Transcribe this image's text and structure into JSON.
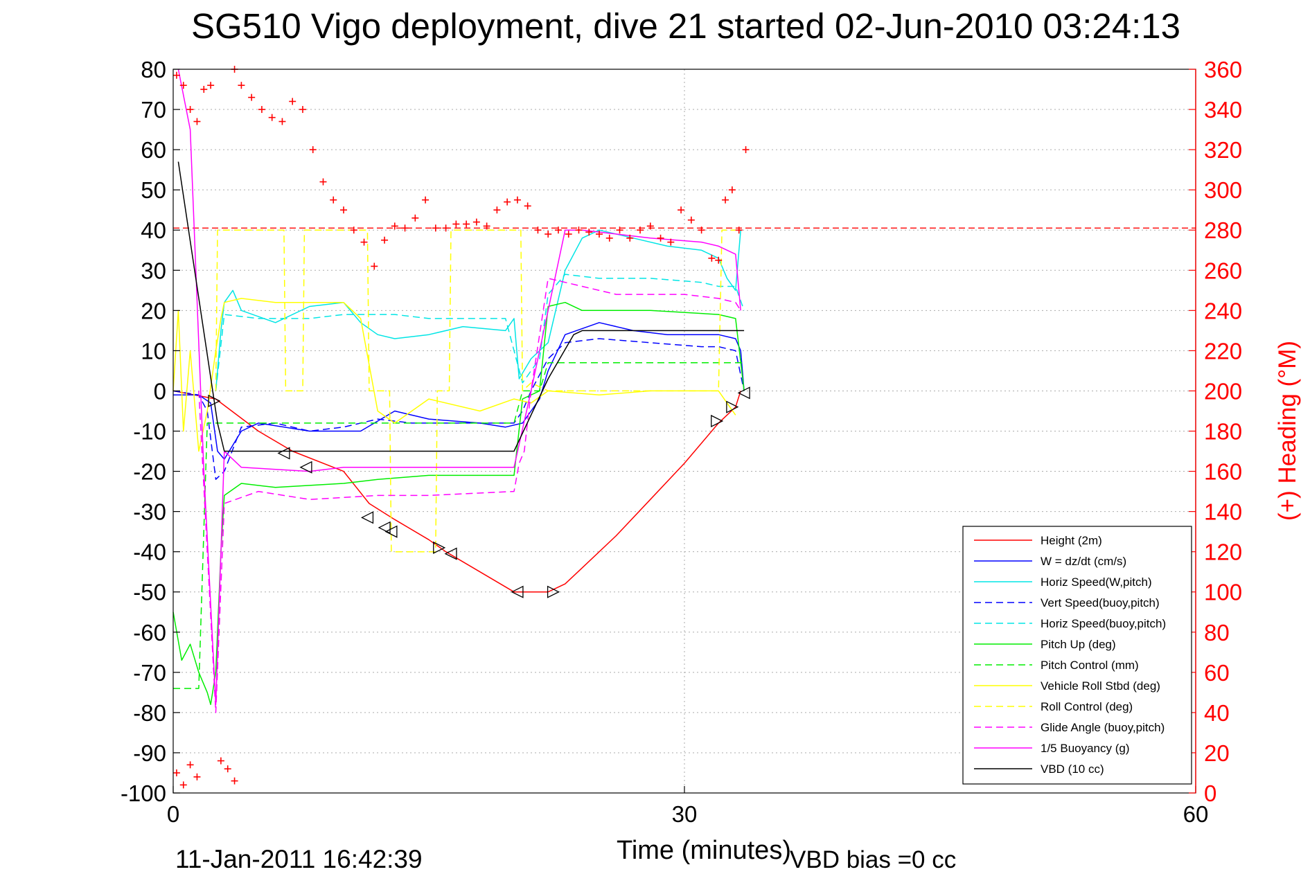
{
  "chart_data": {
    "type": "line",
    "title": "SG510 Vigo deployment, dive 21 started 02-Jun-2010 03:24:13",
    "xlabel": "Time (minutes)",
    "ylabel": "",
    "y2label": "(+) Heading (°M)",
    "xlim": [
      0,
      60
    ],
    "ylim": [
      -100,
      80
    ],
    "y2lim": [
      0,
      360
    ],
    "x_ticks": [
      "0",
      "30",
      "60"
    ],
    "y_ticks": [
      "80",
      "70",
      "60",
      "50",
      "40",
      "30",
      "20",
      "10",
      "0",
      "-10",
      "-20",
      "-30",
      "-40",
      "-50",
      "-60",
      "-70",
      "-80",
      "-90",
      "-100"
    ],
    "y2_ticks": [
      "360",
      "340",
      "320",
      "300",
      "280",
      "260",
      "240",
      "220",
      "200",
      "180",
      "160",
      "140",
      "120",
      "100",
      "80",
      "60",
      "40",
      "20",
      "0"
    ],
    "grid": true,
    "legend_position": "lower-right",
    "bottom_left_text": "11-Jan-2011 16:42:39",
    "bottom_right_text": "VBD bias =0 cc",
    "colors": {
      "red": "#ff0000",
      "blue": "#0000ff",
      "cyan": "#00e5e5",
      "green": "#00ee00",
      "yellow": "#ffff00",
      "magenta": "#ff00ff",
      "black": "#000000",
      "grid": "#aaaaaa"
    },
    "heading_reference": 281,
    "series": [
      {
        "name": "Height (2m)",
        "color": "#ff0000",
        "dash": "solid",
        "x": [
          0,
          2.5,
          5,
          7,
          10,
          11.5,
          13,
          15,
          16,
          20,
          22,
          23,
          24,
          26,
          28,
          30,
          32,
          33,
          33.3
        ],
        "y": [
          0,
          -2,
          -10,
          -15,
          -20,
          -28,
          -32,
          -37,
          -40,
          -50,
          -50,
          -48,
          -44,
          -36,
          -27,
          -18,
          -8,
          -4,
          0
        ]
      },
      {
        "name": "W = dz/dt (cm/s)",
        "color": "#0000ff",
        "dash": "solid",
        "x": [
          0,
          1.5,
          2.2,
          2.6,
          3,
          4,
          5,
          8,
          11,
          13,
          15,
          18,
          19.5,
          20.5,
          21.5,
          22,
          23,
          25,
          27,
          29,
          31,
          32,
          33,
          33.3,
          33.5
        ],
        "y": [
          -1,
          -1,
          -3,
          -15,
          -17,
          -10,
          -8,
          -10,
          -10,
          -5,
          -7,
          -8,
          -9,
          -8,
          -2,
          5,
          14,
          17,
          15,
          14,
          14,
          14,
          13,
          10,
          0
        ]
      },
      {
        "name": "Horiz Speed(W,pitch)",
        "color": "#00e5e5",
        "dash": "solid",
        "x": [
          2.5,
          2.8,
          3,
          3.5,
          4,
          6,
          8,
          10,
          11,
          12,
          13,
          15,
          17,
          19.5,
          20,
          20.3,
          21,
          22,
          23,
          24,
          25,
          27,
          29,
          31,
          32,
          32.5,
          33,
          33.3
        ],
        "y": [
          0,
          15,
          22,
          25,
          20,
          17,
          21,
          22,
          17,
          14,
          13,
          14,
          16,
          15,
          18,
          3,
          8,
          12,
          30,
          38,
          40,
          38,
          36,
          35,
          33,
          28,
          25,
          40
        ]
      },
      {
        "name": "Vert Speed(buoy,pitch)",
        "color": "#0000ff",
        "dash": "dashed",
        "x": [
          0,
          1.5,
          2,
          2.5,
          3,
          4,
          6,
          8,
          10,
          12,
          14,
          16,
          18,
          20,
          20.5,
          21,
          22,
          23,
          25,
          28,
          31,
          32,
          33,
          33.5
        ],
        "y": [
          0,
          -1,
          -5,
          -22,
          -20,
          -9,
          -8,
          -10,
          -9,
          -7,
          -8,
          -8,
          -8,
          -8,
          -5,
          0,
          8,
          12,
          13,
          12,
          11,
          11,
          10,
          0
        ]
      },
      {
        "name": "Horiz Speed(buoy,pitch)",
        "color": "#00e5e5",
        "dash": "dashed",
        "x": [
          2.5,
          3,
          5,
          8,
          10,
          11,
          13,
          15,
          17,
          19.5,
          20.5,
          21.5,
          22,
          23,
          25,
          28,
          31,
          32,
          33,
          33.5
        ],
        "y": [
          0,
          19,
          18,
          18,
          19,
          19,
          19,
          18,
          18,
          18,
          2,
          8,
          24,
          29,
          28,
          28,
          27,
          26,
          26,
          20
        ]
      },
      {
        "name": "Pitch Up (deg)",
        "color": "#00ee00",
        "dash": "solid",
        "x": [
          0,
          0.5,
          1,
          1.5,
          2,
          2.2,
          2.5,
          2.8,
          3,
          4,
          6,
          10,
          12,
          15,
          18,
          20,
          20.5,
          21.5,
          22,
          23,
          24,
          28,
          32,
          33,
          33.5
        ],
        "y": [
          -55,
          -67,
          -63,
          -70,
          -75,
          -78,
          -70,
          -40,
          -26,
          -23,
          -24,
          -23,
          -22,
          -21,
          -21,
          -21,
          -2,
          0,
          21,
          22,
          20,
          20,
          19,
          18,
          0
        ]
      },
      {
        "name": "Pitch Control (mm)",
        "color": "#00ee00",
        "dash": "dashed",
        "x": [
          0,
          1.5,
          2,
          2.5,
          3,
          10,
          20,
          20.5,
          21.5,
          22,
          33.5
        ],
        "y": [
          -74,
          -74,
          -8,
          -8,
          -8,
          -8,
          -8,
          0,
          0,
          7,
          7
        ]
      },
      {
        "name": "Vehicle Roll Stbd (deg)",
        "color": "#ffff00",
        "dash": "solid",
        "x": [
          0,
          0.3,
          0.6,
          1,
          1.5,
          2,
          2.5,
          2.8,
          3,
          4,
          6,
          10,
          11,
          12,
          13,
          15,
          18,
          20,
          21,
          22,
          25,
          28,
          30,
          32,
          32.5,
          33
        ],
        "y": [
          0,
          20,
          -10,
          10,
          -15,
          -5,
          10,
          18,
          22,
          23,
          22,
          22,
          18,
          -5,
          -8,
          -2,
          -5,
          -2,
          -3,
          0,
          -1,
          0,
          0,
          0,
          -3,
          -6
        ]
      },
      {
        "name": "Roll Control (deg)",
        "color": "#ffff00",
        "dash": "dashed",
        "x": [
          2.5,
          2.6,
          6.5,
          6.6,
          7.6,
          7.7,
          11.4,
          11.5,
          12.7,
          12.8,
          15.4,
          15.5,
          16.2,
          16.3,
          20.4,
          20.5,
          21,
          22,
          32,
          32.2,
          33
        ],
        "y": [
          0,
          40,
          40,
          0,
          0,
          40,
          40,
          0,
          0,
          -40,
          -40,
          0,
          0,
          40,
          40,
          0,
          2,
          0,
          0,
          40,
          40
        ]
      },
      {
        "name": "Glide Angle (buoy,pitch)",
        "color": "#ff00ff",
        "dash": "dashed",
        "x": [
          1.5,
          2,
          2.5,
          3,
          5,
          8,
          12,
          15,
          20,
          20.3,
          20.6,
          21,
          22,
          23,
          26,
          30,
          32,
          33,
          33.3
        ],
        "y": [
          0,
          -40,
          -80,
          -28,
          -25,
          -27,
          -26,
          -26,
          -25,
          -18,
          -15,
          0,
          28,
          27,
          24,
          24,
          23,
          22,
          20
        ]
      },
      {
        "name": "1/5 Buoyancy (g)",
        "color": "#ff00ff",
        "dash": "solid",
        "x": [
          0.3,
          1,
          1.8,
          2.5,
          3,
          4,
          8,
          10,
          12,
          15,
          20,
          21,
          22,
          23,
          24,
          28,
          31,
          32,
          33,
          33.3
        ],
        "y": [
          80,
          65,
          -20,
          -78,
          -15,
          -19,
          -20,
          -19,
          -19,
          -19,
          -19,
          0,
          20,
          40,
          40,
          38,
          37,
          36,
          34,
          20
        ]
      },
      {
        "name": "VBD (10 cc)",
        "color": "#000000",
        "dash": "solid",
        "x": [
          0.3,
          2.6,
          3,
          20,
          22,
          23.5,
          24,
          28,
          33.5
        ],
        "y": [
          57,
          -8,
          -15,
          -15,
          3,
          14,
          15,
          15,
          15
        ]
      }
    ],
    "heading_series": {
      "name": "(+) Heading",
      "color": "#ff0000",
      "axis": "right",
      "x": [
        0.2,
        0.6,
        1.0,
        1.4,
        1.8,
        2.2,
        3.6,
        4,
        4.6,
        5.2,
        5.8,
        6.4,
        7,
        7.6,
        8.2,
        8.8,
        9.4,
        10,
        10.6,
        11.2,
        11.8,
        12.4,
        13,
        13.6,
        14.2,
        14.8,
        15.4,
        16,
        16.6,
        17.2,
        17.8,
        18.4,
        19,
        19.6,
        20.2,
        20.8,
        21.4,
        22,
        22.6,
        23.2,
        23.8,
        24.4,
        25,
        25.6,
        26.2,
        26.8,
        27.4,
        28,
        28.6,
        29.2,
        29.8,
        30.4,
        31,
        31.6,
        32,
        32.4,
        32.8,
        33.2,
        33.6
      ],
      "y": [
        357,
        352,
        340,
        334,
        350,
        352,
        360,
        352,
        346,
        340,
        336,
        334,
        344,
        340,
        320,
        304,
        295,
        290,
        280,
        274,
        262,
        275,
        282,
        281,
        286,
        295,
        281,
        281,
        283,
        283,
        284,
        282,
        290,
        294,
        295,
        292,
        280,
        278,
        280,
        278,
        280,
        279,
        278,
        276,
        280,
        276,
        280,
        282,
        276,
        274,
        290,
        285,
        280,
        266,
        265,
        295,
        300,
        280,
        320
      ]
    },
    "heading_lower_points": {
      "x": [
        0.2,
        0.6,
        1.0,
        1.4,
        2.8,
        3.2,
        3.6
      ],
      "y": [
        10,
        4,
        14,
        8,
        16,
        12,
        6
      ]
    },
    "vehicle_markers": {
      "x": [
        2.4,
        6.5,
        7.8,
        11.4,
        12.4,
        12.8,
        15.6,
        16.3,
        20.2,
        22.3,
        31.9,
        32.8,
        33.5
      ],
      "y": [
        -2.5,
        -15.5,
        -19,
        -31.5,
        -34,
        -35,
        -39,
        -40.5,
        -50,
        -50,
        -7.5,
        -4,
        -0.5
      ],
      "dir": [
        "r",
        "l",
        "l",
        "l",
        "l",
        "l",
        "r",
        "l",
        "l",
        "r",
        "r",
        "r",
        "l"
      ]
    }
  }
}
